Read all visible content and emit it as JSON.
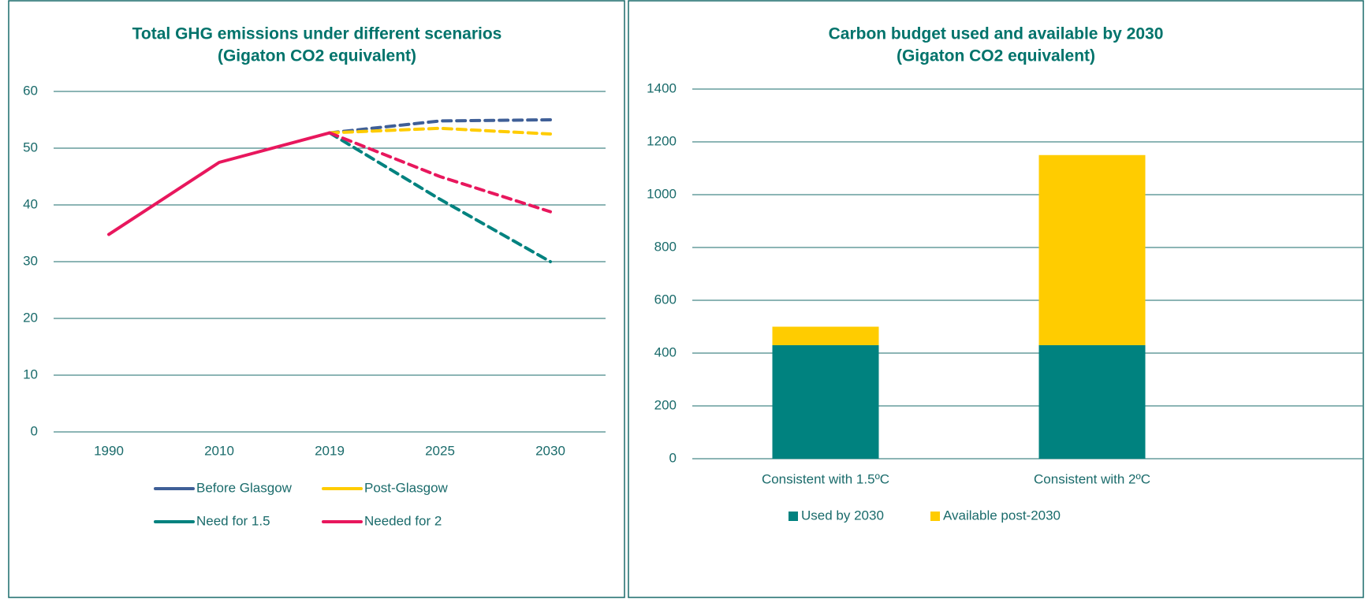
{
  "chart_data": [
    {
      "type": "line",
      "title": "Total GHG emissions under different scenarios",
      "subtitle": "(Gigaton CO2 equivalent)",
      "categories": [
        "1990",
        "2010",
        "2019",
        "2025",
        "2030"
      ],
      "series": [
        {
          "name": "Before Glasgow",
          "color": "#3f5f97",
          "values": [
            null,
            null,
            52.7,
            54.8,
            55
          ]
        },
        {
          "name": "Post-Glasgow",
          "color": "#ffcc00",
          "values": [
            null,
            null,
            52.7,
            53.5,
            52.5
          ]
        },
        {
          "name": "Need for 1.5",
          "color": "#00827f",
          "values": [
            null,
            null,
            52.7,
            41,
            30
          ]
        },
        {
          "name": "Needed for 2",
          "color": "#e8175d",
          "values": [
            34.8,
            47.5,
            52.7,
            45,
            38.8
          ]
        }
      ],
      "ylim": [
        0,
        60
      ],
      "yticks": [
        0,
        10,
        20,
        30,
        40,
        50,
        60
      ],
      "grid": true
    },
    {
      "type": "stacked_bar",
      "title": "Carbon budget used and available by 2030",
      "subtitle": "(Gigaton CO2 equivalent)",
      "categories": [
        "Consistent with 1.5ºC",
        "Consistent with 2ºC"
      ],
      "series": [
        {
          "name": "Used by 2030",
          "color": "#00827f",
          "values": [
            430,
            430
          ]
        },
        {
          "name": "Available post-2030",
          "color": "#ffcc00",
          "values": [
            70,
            720
          ]
        }
      ],
      "ylim": [
        0,
        1400
      ],
      "yticks": [
        0,
        200,
        400,
        600,
        800,
        1000,
        1200,
        1400
      ],
      "grid": true
    }
  ]
}
